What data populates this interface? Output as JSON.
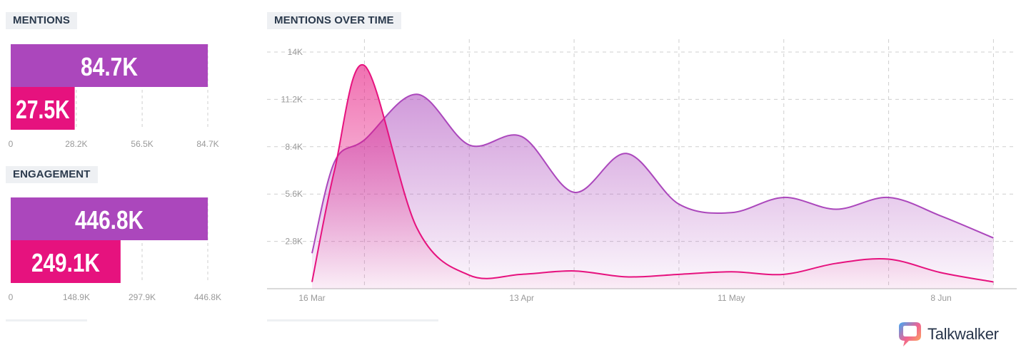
{
  "mentions": {
    "title": "MENTIONS",
    "ticks": [
      "0",
      "28.2K",
      "56.5K",
      "84.7K"
    ],
    "tick_values": [
      0,
      28.2,
      56.5,
      84.7
    ],
    "max": 84.7
  },
  "engagement": {
    "title": "ENGAGEMENT",
    "ticks": [
      "0",
      "148.9K",
      "297.9K",
      "446.8K"
    ],
    "tick_values": [
      0,
      148.9,
      297.9,
      446.8
    ],
    "max": 446.8
  },
  "timeline": {
    "title": "MENTIONS OVER TIME"
  },
  "colors": {
    "purple": "#ab47bc",
    "pink": "#e6127e",
    "grid": "#cfcfcf",
    "axis": "#999999"
  },
  "brand": {
    "name": "Talkwalker",
    "logo_icon": "talkwalker-speech-bubble-icon"
  },
  "chart_data": [
    {
      "type": "bar",
      "title": "MENTIONS",
      "series": [
        {
          "value": 84.7,
          "label": "84.7K",
          "color": "#ab47bc"
        },
        {
          "value": 27.5,
          "label": "27.5K",
          "color": "#e6127e"
        }
      ],
      "xlim": [
        0,
        84.7
      ]
    },
    {
      "type": "bar",
      "title": "ENGAGEMENT",
      "series": [
        {
          "value": 446.8,
          "label": "446.8K",
          "color": "#ab47bc"
        },
        {
          "value": 249.1,
          "label": "249.1K",
          "color": "#e6127e"
        }
      ],
      "xlim": [
        0,
        446.8
      ]
    },
    {
      "type": "area",
      "title": "MENTIONS OVER TIME",
      "x_ticks": [
        "16 Mar",
        "13 Apr",
        "11 May",
        "8 Jun"
      ],
      "x_tick_days": [
        0,
        28,
        56,
        84
      ],
      "y_ticks": [
        "2.8K",
        "5.6K",
        "8.4K",
        "11.2K",
        "14K"
      ],
      "y_tick_values": [
        2.8,
        5.6,
        8.4,
        11.2,
        14
      ],
      "ylim": [
        0,
        14
      ],
      "series": [
        {
          "color": "#ab47bc",
          "x": [
            0,
            3,
            7,
            14,
            21,
            28,
            35,
            42,
            49,
            56,
            63,
            70,
            77,
            84,
            91
          ],
          "y": [
            2.1,
            7.5,
            8.8,
            11.5,
            8.5,
            9.0,
            5.7,
            8.0,
            5.0,
            4.5,
            5.4,
            4.7,
            5.4,
            4.3,
            3.0
          ]
        },
        {
          "color": "#e6127e",
          "x": [
            0,
            3,
            7,
            14,
            21,
            28,
            35,
            42,
            49,
            56,
            63,
            70,
            77,
            84,
            91
          ],
          "y": [
            0.4,
            7.0,
            13.2,
            3.6,
            0.8,
            0.85,
            1.05,
            0.7,
            0.85,
            1.0,
            0.85,
            1.5,
            1.75,
            0.95,
            0.4
          ]
        }
      ]
    }
  ]
}
